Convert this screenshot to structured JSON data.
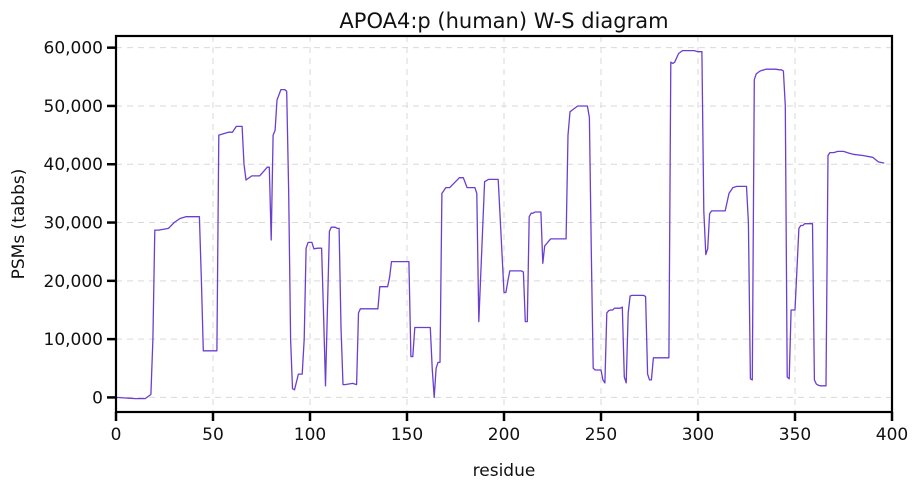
{
  "colors": {
    "series": "#6a3fd0",
    "frame": "#000000",
    "grid": "#d9d9d9"
  },
  "chart_data": {
    "type": "line",
    "title": "APOA4:p (human) W-S diagram",
    "xlabel": "residue",
    "ylabel": "PSMs (tabbs)",
    "xlim": [
      0,
      400
    ],
    "ylim": [
      -2500,
      62000
    ],
    "x_ticks": [
      0,
      50,
      100,
      150,
      200,
      250,
      300,
      350,
      400
    ],
    "x_tick_labels": [
      "0",
      "50",
      "100",
      "150",
      "200",
      "250",
      "300",
      "350",
      "400"
    ],
    "y_ticks": [
      0,
      10000,
      20000,
      30000,
      40000,
      50000,
      60000
    ],
    "y_tick_labels": [
      "0",
      "10,000",
      "20,000",
      "30,000",
      "40,000",
      "50,000",
      "60,000"
    ],
    "grid": true,
    "series": [
      {
        "x": [
          0,
          5,
          10,
          15,
          18,
          19,
          20,
          21,
          22,
          27,
          30,
          33,
          36,
          40,
          43,
          44,
          45,
          46,
          50,
          51,
          52,
          53,
          58,
          60,
          62,
          64,
          65,
          66,
          67,
          70,
          74,
          78,
          79,
          80,
          81,
          82,
          83,
          85,
          87,
          88,
          89,
          90,
          91,
          92,
          94,
          95,
          96,
          97,
          98,
          99,
          100,
          101,
          102,
          104,
          105,
          106,
          107,
          108,
          110,
          111,
          112,
          113,
          114,
          115,
          116,
          117,
          118,
          122,
          124,
          125,
          126,
          127,
          130,
          134,
          135,
          136,
          137,
          139,
          140,
          141,
          142,
          143,
          144,
          145,
          146,
          150,
          151,
          152,
          153,
          154,
          155,
          156,
          160,
          161,
          162,
          163,
          164,
          165,
          166,
          167,
          168,
          169,
          170,
          172,
          175,
          177,
          179,
          181,
          183,
          184,
          185,
          186,
          187,
          190,
          192,
          193,
          194,
          195,
          196,
          197,
          200,
          201,
          202,
          203,
          204,
          206,
          208,
          209,
          210,
          211,
          212,
          213,
          214,
          215,
          216,
          217,
          218,
          219,
          220,
          221,
          222,
          224,
          226,
          228,
          230,
          231,
          232,
          233,
          234,
          236,
          238,
          240,
          242,
          243,
          244,
          245,
          246,
          247,
          248,
          249,
          250,
          251,
          252,
          253,
          254,
          255,
          256,
          257,
          258,
          259,
          260,
          261,
          262,
          263,
          264,
          265,
          266,
          267,
          270,
          271,
          272,
          273,
          274,
          275,
          276,
          277,
          278,
          279,
          280,
          281,
          282,
          283,
          284,
          285,
          286,
          287,
          288,
          290,
          292,
          295,
          298,
          300,
          302,
          303,
          304,
          305,
          306,
          307,
          308,
          310,
          312,
          313,
          314,
          316,
          318,
          320,
          321,
          322,
          323,
          324,
          325,
          326,
          327,
          328,
          329,
          330,
          332,
          335,
          338,
          340,
          342,
          343,
          344,
          345,
          346,
          347,
          348,
          350,
          352,
          353,
          354,
          355,
          356,
          357,
          358,
          359,
          360,
          361,
          362,
          363,
          364,
          365,
          366,
          367,
          368,
          370,
          372,
          375,
          378,
          380,
          385,
          390,
          393,
          396
        ],
        "y": [
          0,
          -100,
          -200,
          -200,
          500,
          10000,
          28700,
          28700,
          28700,
          29000,
          30000,
          30700,
          31000,
          31000,
          31000,
          20000,
          8000,
          8000,
          8000,
          8000,
          8000,
          45000,
          45500,
          45500,
          46500,
          46500,
          46500,
          40000,
          37300,
          38000,
          38000,
          39500,
          39500,
          27000,
          45000,
          45800,
          51000,
          52800,
          52800,
          52500,
          35000,
          10000,
          1500,
          1300,
          4000,
          4000,
          4000,
          10000,
          25600,
          26600,
          26600,
          26600,
          25500,
          25600,
          25600,
          25600,
          14000,
          2000,
          28500,
          29200,
          29200,
          29200,
          29000,
          29000,
          12000,
          2200,
          2200,
          2400,
          2200,
          14500,
          15200,
          15200,
          15200,
          15200,
          15200,
          19000,
          19000,
          19000,
          19000,
          20500,
          23300,
          23300,
          23300,
          23300,
          23300,
          23300,
          23300,
          7000,
          7000,
          12000,
          12000,
          12000,
          12000,
          12000,
          12000,
          5000,
          0,
          5000,
          6000,
          6000,
          35000,
          35500,
          36000,
          36000,
          37000,
          37700,
          37700,
          36000,
          36000,
          36000,
          36000,
          35000,
          13000,
          37000,
          37400,
          37400,
          37400,
          37400,
          37400,
          37400,
          18000,
          18000,
          20000,
          21700,
          21700,
          21700,
          21700,
          21700,
          21500,
          13000,
          13000,
          31000,
          31600,
          31600,
          31800,
          31800,
          31800,
          31800,
          23000,
          26000,
          26400,
          27200,
          27200,
          27200,
          27200,
          27200,
          27200,
          45000,
          49000,
          49500,
          50000,
          50000,
          50000,
          50000,
          48000,
          25000,
          5000,
          4700,
          4700,
          4700,
          4700,
          3000,
          2500,
          14500,
          14900,
          15000,
          15000,
          15300,
          15300,
          15300,
          15300,
          15500,
          3500,
          2500,
          14500,
          17400,
          17500,
          17500,
          17500,
          17500,
          17500,
          17300,
          4000,
          3000,
          3000,
          6800,
          6800,
          6800,
          6800,
          6800,
          6800,
          6800,
          6800,
          6800,
          57500,
          57300,
          57500,
          59000,
          59500,
          59500,
          59500,
          59300,
          59300,
          32000,
          24500,
          25500,
          31500,
          32000,
          32000,
          32000,
          32000,
          32000,
          32000,
          35000,
          36000,
          36200,
          36200,
          36200,
          36200,
          36200,
          36200,
          30000,
          3200,
          3000,
          54500,
          55500,
          56000,
          56300,
          56300,
          56300,
          56200,
          56200,
          56000,
          50000,
          3500,
          3200,
          15000,
          15000,
          29000,
          29500,
          29500,
          29800,
          29800,
          29800,
          29800,
          29800,
          3000,
          2300,
          2100,
          2000,
          2000,
          2000,
          2000,
          41500,
          42000,
          42000,
          42200,
          42200,
          41900,
          41700,
          41500,
          41200,
          40400,
          40200
        ]
      }
    ]
  }
}
